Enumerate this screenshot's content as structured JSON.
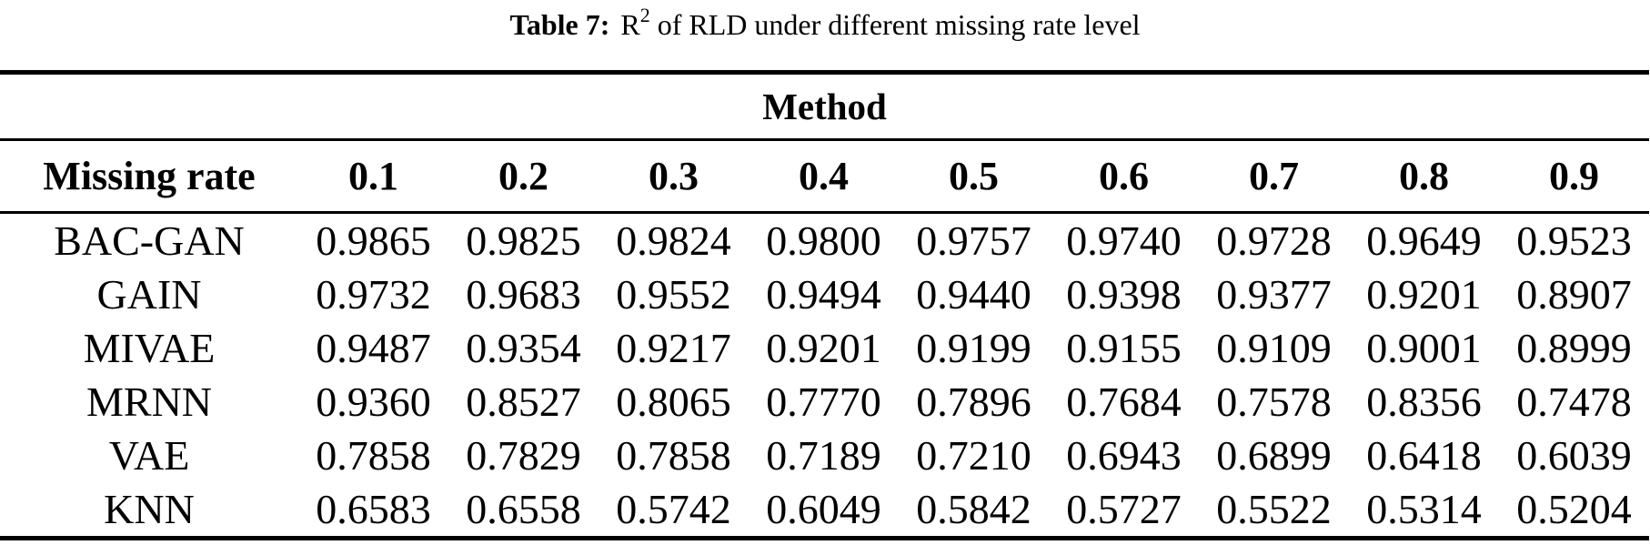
{
  "caption": {
    "prefix": "Table 7:",
    "metric_base": "R",
    "metric_sup": "2",
    "rest": " of RLD under different missing rate level"
  },
  "table": {
    "group_header": "Method",
    "row_axis_label": "Missing rate",
    "columns": [
      "0.1",
      "0.2",
      "0.3",
      "0.4",
      "0.5",
      "0.6",
      "0.7",
      "0.8",
      "0.9"
    ],
    "rows": [
      {
        "label": "BAC-GAN",
        "values": [
          "0.9865",
          "0.9825",
          "0.9824",
          "0.9800",
          "0.9757",
          "0.9740",
          "0.9728",
          "0.9649",
          "0.9523"
        ]
      },
      {
        "label": "GAIN",
        "values": [
          "0.9732",
          "0.9683",
          "0.9552",
          "0.9494",
          "0.9440",
          "0.9398",
          "0.9377",
          "0.9201",
          "0.8907"
        ]
      },
      {
        "label": "MIVAE",
        "values": [
          "0.9487",
          "0.9354",
          "0.9217",
          "0.9201",
          "0.9199",
          "0.9155",
          "0.9109",
          "0.9001",
          "0.8999"
        ]
      },
      {
        "label": "MRNN",
        "values": [
          "0.9360",
          "0.8527",
          "0.8065",
          "0.7770",
          "0.7896",
          "0.7684",
          "0.7578",
          "0.8356",
          "0.7478"
        ]
      },
      {
        "label": "VAE",
        "values": [
          "0.7858",
          "0.7829",
          "0.7858",
          "0.7189",
          "0.7210",
          "0.6943",
          "0.6899",
          "0.6418",
          "0.6039"
        ]
      },
      {
        "label": "KNN",
        "values": [
          "0.6583",
          "0.6558",
          "0.5742",
          "0.6049",
          "0.5842",
          "0.5727",
          "0.5522",
          "0.5314",
          "0.5204"
        ]
      }
    ]
  },
  "colors": {
    "text": "#000000",
    "background": "#ffffff",
    "rule": "#000000"
  },
  "chart_data": {
    "type": "table",
    "title": "Table 7: R^2 of RLD under different missing rate level",
    "group_header": "Method",
    "x_label": "Missing rate",
    "x": [
      0.1,
      0.2,
      0.3,
      0.4,
      0.5,
      0.6,
      0.7,
      0.8,
      0.9
    ],
    "series": [
      {
        "name": "BAC-GAN",
        "values": [
          0.9865,
          0.9825,
          0.9824,
          0.98,
          0.9757,
          0.974,
          0.9728,
          0.9649,
          0.9523
        ]
      },
      {
        "name": "GAIN",
        "values": [
          0.9732,
          0.9683,
          0.9552,
          0.9494,
          0.944,
          0.9398,
          0.9377,
          0.9201,
          0.8907
        ]
      },
      {
        "name": "MIVAE",
        "values": [
          0.9487,
          0.9354,
          0.9217,
          0.9201,
          0.9199,
          0.9155,
          0.9109,
          0.9001,
          0.8999
        ]
      },
      {
        "name": "MRNN",
        "values": [
          0.936,
          0.8527,
          0.8065,
          0.777,
          0.7896,
          0.7684,
          0.7578,
          0.8356,
          0.7478
        ]
      },
      {
        "name": "VAE",
        "values": [
          0.7858,
          0.7829,
          0.7858,
          0.7189,
          0.721,
          0.6943,
          0.6899,
          0.6418,
          0.6039
        ]
      },
      {
        "name": "KNN",
        "values": [
          0.6583,
          0.6558,
          0.5742,
          0.6049,
          0.5842,
          0.5727,
          0.5522,
          0.5314,
          0.5204
        ]
      }
    ]
  }
}
